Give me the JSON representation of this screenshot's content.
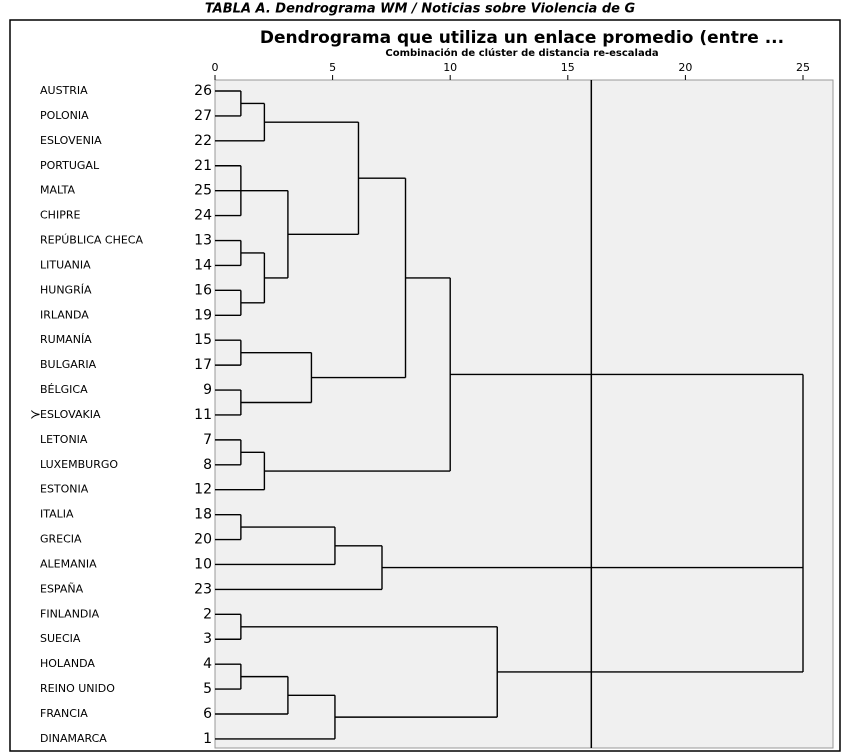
{
  "header": "TABLA A. Dendrograma WM / Noticias sobre Violencia de G",
  "chart_data": {
    "type": "dendrogram",
    "title": "Dendrograma que utiliza un enlace promedio (entre ...",
    "subtitle": "Combinación de clúster de distancia re-escalada",
    "xlim": [
      0,
      25
    ],
    "xticks": [
      0,
      5,
      10,
      15,
      20,
      25
    ],
    "reference_line": 16,
    "tree": {
      "height": 25,
      "children": [
        {
          "height": 10,
          "children": [
            {
              "height": 8.1,
              "children": [
                {
                  "height": 6.1,
                  "children": [
                    {
                      "height": 2.1,
                      "children": [
                        {
                          "height": 1.1,
                          "children": [
                            {
                              "label": "AUSTRIA",
                              "id": 26
                            },
                            {
                              "label": "POLONIA",
                              "id": 27
                            }
                          ]
                        },
                        {
                          "label": "ESLOVENIA",
                          "id": 22
                        }
                      ]
                    },
                    {
                      "height": 3.1,
                      "children": [
                        {
                          "height": 1.1,
                          "children": [
                            {
                              "label": "PORTUGAL",
                              "id": 21
                            },
                            {
                              "label": "MALTA",
                              "id": 25
                            },
                            {
                              "label": "CHIPRE",
                              "id": 24
                            }
                          ]
                        },
                        {
                          "height": 2.1,
                          "children": [
                            {
                              "height": 1.1,
                              "children": [
                                {
                                  "label": "REPÚBLICA CHECA",
                                  "id": 13
                                },
                                {
                                  "label": "LITUANIA",
                                  "id": 14
                                }
                              ]
                            },
                            {
                              "height": 1.1,
                              "children": [
                                {
                                  "label": "HUNGRÍA",
                                  "id": 16
                                },
                                {
                                  "label": "IRLANDA",
                                  "id": 19
                                }
                              ]
                            }
                          ]
                        }
                      ]
                    }
                  ]
                },
                {
                  "height": 4.1,
                  "children": [
                    {
                      "height": 1.1,
                      "children": [
                        {
                          "label": "RUMANÍA",
                          "id": 15
                        },
                        {
                          "label": "BULGARIA",
                          "id": 17
                        }
                      ]
                    },
                    {
                      "height": 1.1,
                      "children": [
                        {
                          "label": "BÉLGICA",
                          "id": 9
                        },
                        {
                          "label": "ESLOVAKIA",
                          "id": 11
                        }
                      ]
                    }
                  ]
                }
              ]
            },
            {
              "height": 2.1,
              "children": [
                {
                  "height": 1.1,
                  "children": [
                    {
                      "label": "LETONIA",
                      "id": 7
                    },
                    {
                      "label": "LUXEMBURGO",
                      "id": 8
                    }
                  ]
                },
                {
                  "label": "ESTONIA",
                  "id": 12
                }
              ]
            }
          ]
        },
        {
          "height": 7.1,
          "children": [
            {
              "height": 5.1,
              "children": [
                {
                  "height": 1.1,
                  "children": [
                    {
                      "label": "ITALIA",
                      "id": 18
                    },
                    {
                      "label": "GRECIA",
                      "id": 20
                    }
                  ]
                },
                {
                  "label": "ALEMANIA",
                  "id": 10
                }
              ]
            },
            {
              "label": "ESPAÑA",
              "id": 23
            }
          ]
        },
        {
          "height": 12,
          "children": [
            {
              "height": 1.1,
              "children": [
                {
                  "label": "FINLANDIA",
                  "id": 2
                },
                {
                  "label": "SUECIA",
                  "id": 3
                }
              ]
            },
            {
              "height": 5.1,
              "children": [
                {
                  "height": 3.1,
                  "children": [
                    {
                      "height": 1.1,
                      "children": [
                        {
                          "label": "HOLANDA",
                          "id": 4
                        },
                        {
                          "label": "REINO UNIDO",
                          "id": 5
                        }
                      ]
                    },
                    {
                      "label": "FRANCIA",
                      "id": 6
                    }
                  ]
                },
                {
                  "label": "DINAMARCA",
                  "id": 1
                }
              ]
            }
          ]
        }
      ]
    }
  }
}
